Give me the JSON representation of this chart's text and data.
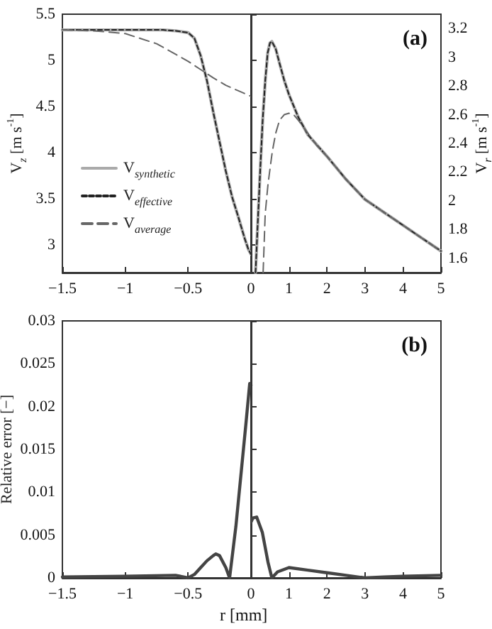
{
  "chart_data": [
    {
      "type": "line",
      "ylabel": "V$_{z}$ [m s$^{-1}$]",
      "xlim": [
        -1.5,
        0
      ],
      "xticks": [
        -1.5,
        -1,
        -0.5,
        0
      ],
      "ylim": [
        2.7,
        5.5
      ],
      "yticks": [
        3,
        3.5,
        4,
        4.5,
        5,
        5.5
      ],
      "legend": "left",
      "marker": "none",
      "series": [
        {
          "name": "V$_{synthetic}$",
          "color": "#aaaaaa",
          "line_style": "solid",
          "x": [
            -1.5,
            -1,
            -0.7,
            -0.6,
            -0.5,
            -0.45,
            -0.4,
            -0.35,
            -0.3,
            -0.25,
            -0.2,
            -0.15,
            -0.1,
            -0.05,
            -0.02,
            0
          ],
          "values": [
            5.33,
            5.33,
            5.33,
            5.32,
            5.3,
            5.24,
            5.05,
            4.78,
            4.44,
            4.12,
            3.8,
            3.52,
            3.3,
            3.07,
            2.95,
            2.9
          ]
        },
        {
          "name": "V$_{effective}$",
          "color": "#222222",
          "line_style": "dotted",
          "x": [
            -1.5,
            -1,
            -0.7,
            -0.6,
            -0.5,
            -0.45,
            -0.4,
            -0.35,
            -0.3,
            -0.25,
            -0.2,
            -0.15,
            -0.1,
            -0.05,
            -0.02,
            0
          ],
          "values": [
            5.33,
            5.33,
            5.33,
            5.32,
            5.3,
            5.24,
            5.05,
            4.78,
            4.44,
            4.12,
            3.8,
            3.52,
            3.3,
            3.07,
            2.95,
            2.9
          ]
        },
        {
          "name": "V$_{average}$",
          "color": "#666666",
          "line_style": "dashed",
          "x": [
            -1.5,
            -1.25,
            -1,
            -0.75,
            -0.5,
            -0.4,
            -0.3,
            -0.2,
            -0.1,
            0
          ],
          "values": [
            5.33,
            5.32,
            5.29,
            5.18,
            4.99,
            4.9,
            4.81,
            4.73,
            4.67,
            4.61
          ]
        }
      ]
    },
    {
      "type": "line",
      "y2label": "V$_{r}$ [m s$^{-1}$]",
      "annotations": [
        "(a)"
      ],
      "xlim": [
        0,
        5
      ],
      "xticks": [
        {
          "value": 0,
          "label": null
        },
        1,
        2,
        3,
        4,
        5
      ],
      "y2lim": [
        1.5,
        3.3
      ],
      "y2ticks": [
        1.6,
        1.8,
        2,
        2.2,
        2.4,
        2.6,
        2.8,
        3,
        3.2
      ],
      "marker": "none",
      "series": [
        {
          "color": "#aaaaaa",
          "line_style": "solid",
          "axis": "y2",
          "x": [
            0.12,
            0.19,
            0.25,
            0.31,
            0.38,
            0.44,
            0.5,
            0.55,
            0.65,
            0.75,
            0.875,
            1,
            1.25,
            1.5,
            2,
            2.5,
            3,
            3.5,
            4,
            4.5,
            5
          ],
          "values": [
            1.5,
            1.91,
            2.25,
            2.57,
            2.85,
            3.03,
            3.1,
            3.11,
            3.06,
            2.96,
            2.84,
            2.74,
            2.58,
            2.46,
            2.31,
            2.15,
            2.01,
            1.92,
            1.83,
            1.74,
            1.65
          ]
        },
        {
          "color": "#222222",
          "line_style": "dotted",
          "axis": "y2",
          "x": [
            0.12,
            0.19,
            0.25,
            0.31,
            0.38,
            0.44,
            0.5,
            0.55,
            0.65,
            0.75,
            0.875,
            1,
            1.25,
            1.5,
            2,
            2.5,
            3,
            3.5,
            4,
            4.5,
            5
          ],
          "values": [
            1.5,
            1.91,
            2.25,
            2.57,
            2.85,
            3.03,
            3.1,
            3.11,
            3.06,
            2.96,
            2.84,
            2.74,
            2.58,
            2.46,
            2.31,
            2.15,
            2.01,
            1.92,
            1.83,
            1.74,
            1.65
          ]
        },
        {
          "color": "#666666",
          "line_style": "dashed",
          "axis": "y2",
          "x": [
            0.32,
            0.375,
            0.45,
            0.56,
            0.65,
            0.75,
            0.875,
            1,
            1.125,
            1.25,
            1.5,
            1.75,
            2,
            2.5,
            3,
            3.5,
            4,
            4.5,
            5
          ],
          "values": [
            1.5,
            1.91,
            2.12,
            2.34,
            2.47,
            2.56,
            2.6,
            2.61,
            2.6,
            2.56,
            2.47,
            2.38,
            2.31,
            2.15,
            2.01,
            1.92,
            1.83,
            1.74,
            1.65
          ]
        }
      ]
    },
    {
      "type": "line",
      "ylabel": "Relative error [−]",
      "xlabel": "r [mm]",
      "xlim": [
        -1.5,
        0
      ],
      "xticks": [
        -1.5,
        -1,
        -0.5,
        0
      ],
      "ylim": [
        0,
        0.03
      ],
      "yticks": [
        0,
        0.005,
        0.01,
        0.015,
        0.02,
        0.025,
        0.03
      ],
      "marker": "none",
      "series": [
        {
          "color": "#444444",
          "x": [
            -1.5,
            -1,
            -0.6,
            -0.5,
            -0.45,
            -0.4,
            -0.35,
            -0.3,
            -0.28,
            -0.25,
            -0.2,
            -0.17,
            -0.12,
            -0.08,
            -0.04,
            -0.01,
            0
          ],
          "values": [
            0.0001,
            0.0002,
            0.0003,
            0,
            0.0004,
            0.0012,
            0.002,
            0.0026,
            0.0028,
            0.0026,
            0.0012,
            0,
            0.006,
            0.012,
            0.018,
            0.0227,
            0.0225
          ]
        }
      ]
    },
    {
      "type": "line",
      "annotations": [
        "(b)"
      ],
      "xlim": [
        0,
        5
      ],
      "xticks": [
        {
          "value": 0,
          "label": null
        },
        1,
        2,
        3,
        4,
        5
      ],
      "ylim": [
        0,
        0.03
      ],
      "yticks": [
        0,
        0.005,
        0.01,
        0.015,
        0.02,
        0.025,
        0.03
      ],
      "tick_labels": "x",
      "marker": "none",
      "series": [
        {
          "color": "#444444",
          "x": [
            0,
            0.05,
            0.15,
            0.3,
            0.45,
            0.55,
            0.7,
            1,
            1.5,
            2,
            2.5,
            3,
            3.5,
            4,
            5
          ],
          "values": [
            0.0065,
            0.007,
            0.0071,
            0.0053,
            0.0018,
            0,
            0.0007,
            0.0012,
            0.0009,
            0.0006,
            0.0003,
            0,
            0.0001,
            0.0002,
            0.0003
          ]
        }
      ]
    }
  ]
}
